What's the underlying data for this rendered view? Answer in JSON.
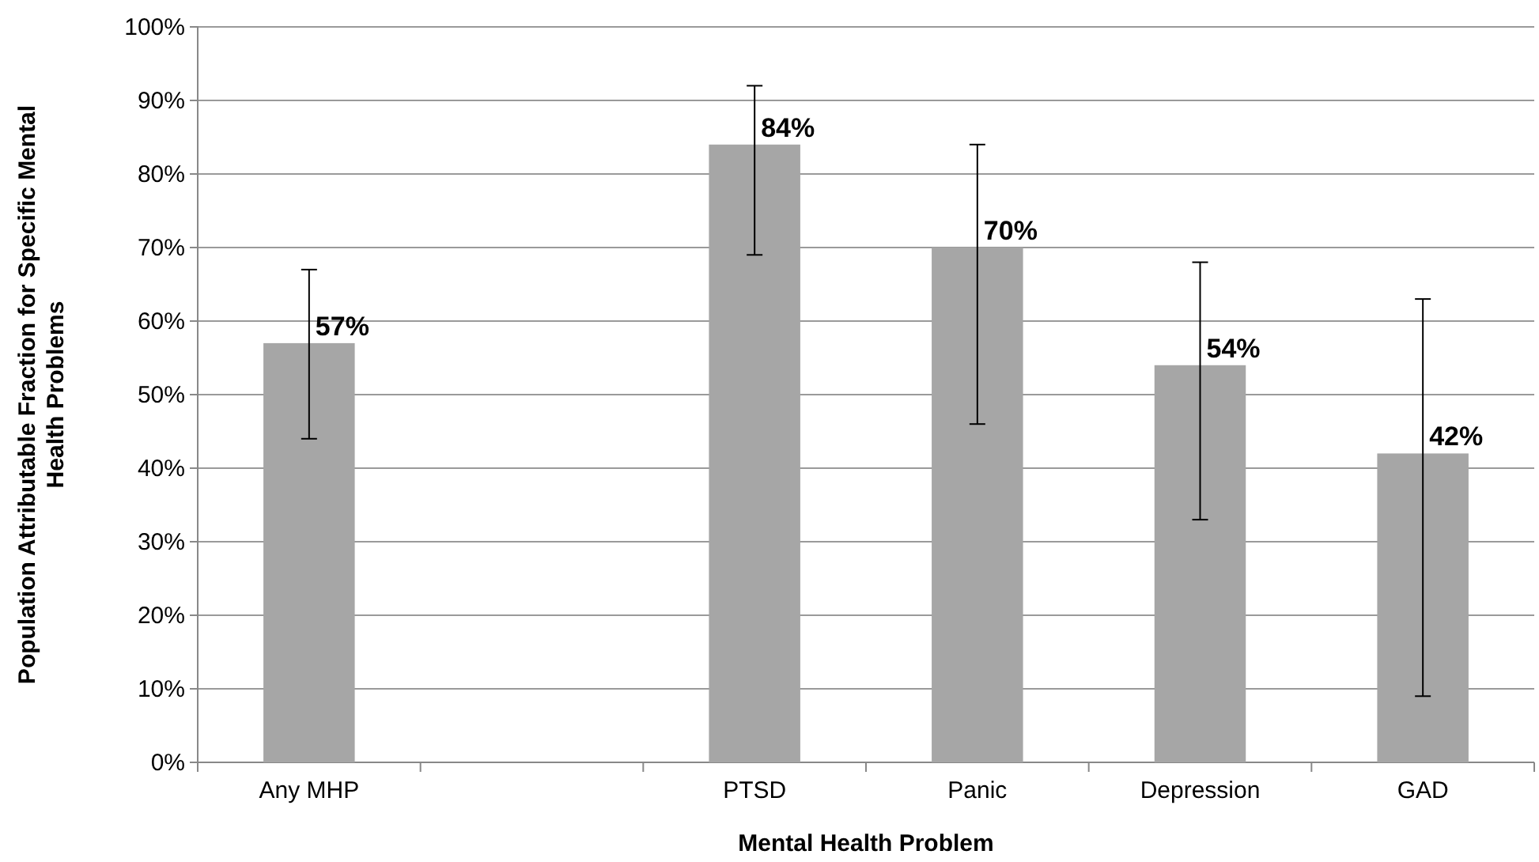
{
  "chart_data": {
    "type": "bar",
    "xlabel": "Mental Health Problem",
    "ylabel": "Population Attributable Fraction for Specific Mental Health Problems",
    "categories": [
      "Any MHP",
      null,
      "PTSD",
      "Panic",
      "Depression",
      "GAD"
    ],
    "values": [
      57,
      null,
      84,
      70,
      54,
      42
    ],
    "errors": [
      [
        44,
        67
      ],
      null,
      [
        69,
        92
      ],
      [
        46,
        84
      ],
      [
        33,
        68
      ],
      [
        9,
        63
      ]
    ],
    "value_labels": [
      "57%",
      null,
      "84%",
      "70%",
      "54%",
      "42%"
    ],
    "color": "#a6a6a6",
    "ylim": [
      0,
      100
    ],
    "yticks": [
      {
        "value": 0,
        "label": "0%"
      },
      {
        "value": 10,
        "label": "10%"
      },
      {
        "value": 20,
        "label": "20%"
      },
      {
        "value": 30,
        "label": "30%"
      },
      {
        "value": 40,
        "label": "40%"
      },
      {
        "value": 50,
        "label": "50%"
      },
      {
        "value": 60,
        "label": "60%"
      },
      {
        "value": 70,
        "label": "70%"
      },
      {
        "value": 80,
        "label": "80%"
      },
      {
        "value": 90,
        "label": "90%"
      },
      {
        "value": 100,
        "label": "100%"
      }
    ],
    "grid": "y"
  }
}
